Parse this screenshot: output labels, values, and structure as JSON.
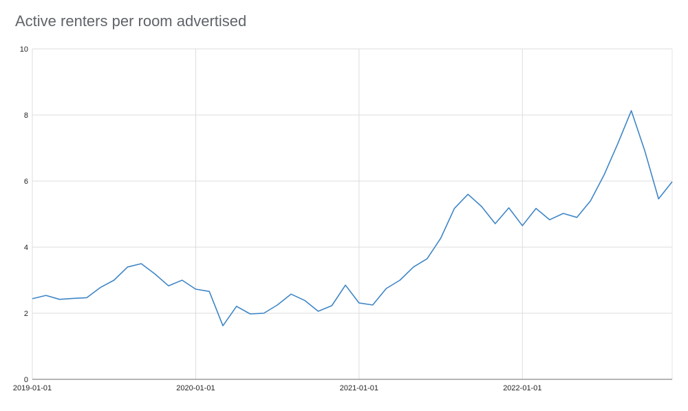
{
  "chart_data": {
    "type": "line",
    "title": "Active renters per room advertised",
    "xlabel": "",
    "ylabel": "",
    "ylim": [
      0,
      10
    ],
    "yticks": [
      0,
      2,
      4,
      6,
      8,
      10
    ],
    "xticks": [
      "2019-01-01",
      "2020-01-01",
      "2021-01-01",
      "2022-01-01"
    ],
    "grid": true,
    "legend": null,
    "series": [
      {
        "name": "Active renters per room advertised",
        "color": "#3d85c6",
        "x": [
          "2019-01",
          "2019-02",
          "2019-03",
          "2019-04",
          "2019-05",
          "2019-06",
          "2019-07",
          "2019-08",
          "2019-09",
          "2019-10",
          "2019-11",
          "2019-12",
          "2020-01",
          "2020-02",
          "2020-03",
          "2020-04",
          "2020-05",
          "2020-06",
          "2020-07",
          "2020-08",
          "2020-09",
          "2020-10",
          "2020-11",
          "2020-12",
          "2021-01",
          "2021-02",
          "2021-03",
          "2021-04",
          "2021-05",
          "2021-06",
          "2021-07",
          "2021-08",
          "2021-09",
          "2021-10",
          "2021-11",
          "2021-12",
          "2022-01",
          "2022-02",
          "2022-03",
          "2022-04",
          "2022-05",
          "2022-06",
          "2022-07",
          "2022-08",
          "2022-09",
          "2022-10",
          "2022-11",
          "2022-12"
        ],
        "values": [
          2.44,
          2.54,
          2.42,
          2.45,
          2.47,
          2.78,
          3.0,
          3.4,
          3.5,
          3.19,
          2.83,
          3.0,
          2.73,
          2.66,
          1.62,
          2.21,
          1.98,
          2.0,
          2.25,
          2.58,
          2.39,
          2.06,
          2.23,
          2.85,
          2.31,
          2.25,
          2.75,
          3.0,
          3.4,
          3.65,
          4.27,
          5.17,
          5.6,
          5.23,
          4.71,
          5.19,
          4.65,
          5.17,
          4.83,
          5.02,
          4.9,
          5.4,
          6.19,
          7.13,
          8.13,
          6.9,
          5.46,
          5.98
        ]
      }
    ]
  }
}
